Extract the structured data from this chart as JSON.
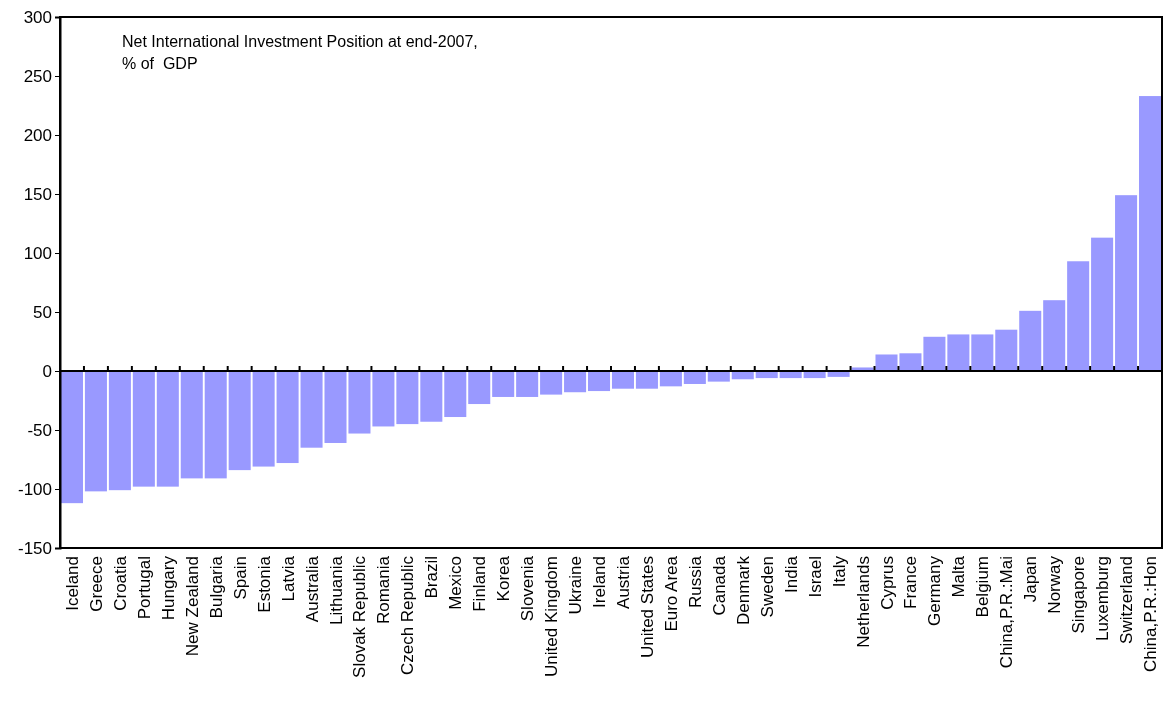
{
  "chart_data": {
    "type": "bar",
    "title": "Net International Investment Position at end-2007,\n% of  GDP",
    "categories": [
      "Iceland",
      "Greece",
      "Croatia",
      "Portugal",
      "Hungary",
      "New Zealand",
      "Bulgaria",
      "Spain",
      "Estonia",
      "Latvia",
      "Australia",
      "Lithuania",
      "Slovak Republic",
      "Romania",
      "Czech Republic",
      "Brazil",
      "Mexico",
      "Finland",
      "Korea",
      "Slovenia",
      "United Kingdom",
      "Ukraine",
      "Ireland",
      "Austria",
      "United States",
      "Euro Area",
      "Russia",
      "Canada",
      "Denmark",
      "Sweden",
      "India",
      "Israel",
      "Italy",
      "Netherlands",
      "Cyprus",
      "France",
      "Germany",
      "Malta",
      "Belgium",
      "China,P.R.:Mai",
      "Japan",
      "Norway",
      "Singapore",
      "Luxemburg",
      "Switzerland",
      "China,P.R.:Hon"
    ],
    "values": [
      -112,
      -102,
      -101,
      -98,
      -98,
      -91,
      -91,
      -84,
      -81,
      -78,
      -65,
      -61,
      -53,
      -47,
      -45,
      -43,
      -39,
      -28,
      -22,
      -22,
      -20,
      -18,
      -17,
      -15,
      -15,
      -13,
      -11,
      -9,
      -7,
      -6,
      -6,
      -6,
      -5,
      3,
      14,
      15,
      29,
      31,
      31,
      35,
      51,
      60,
      93,
      113,
      149,
      233
    ],
    "color": "#9999ff",
    "ylim": [
      -150,
      300
    ],
    "yticks": [
      -150,
      -100,
      -50,
      0,
      50,
      100,
      150,
      200,
      250,
      300
    ]
  }
}
